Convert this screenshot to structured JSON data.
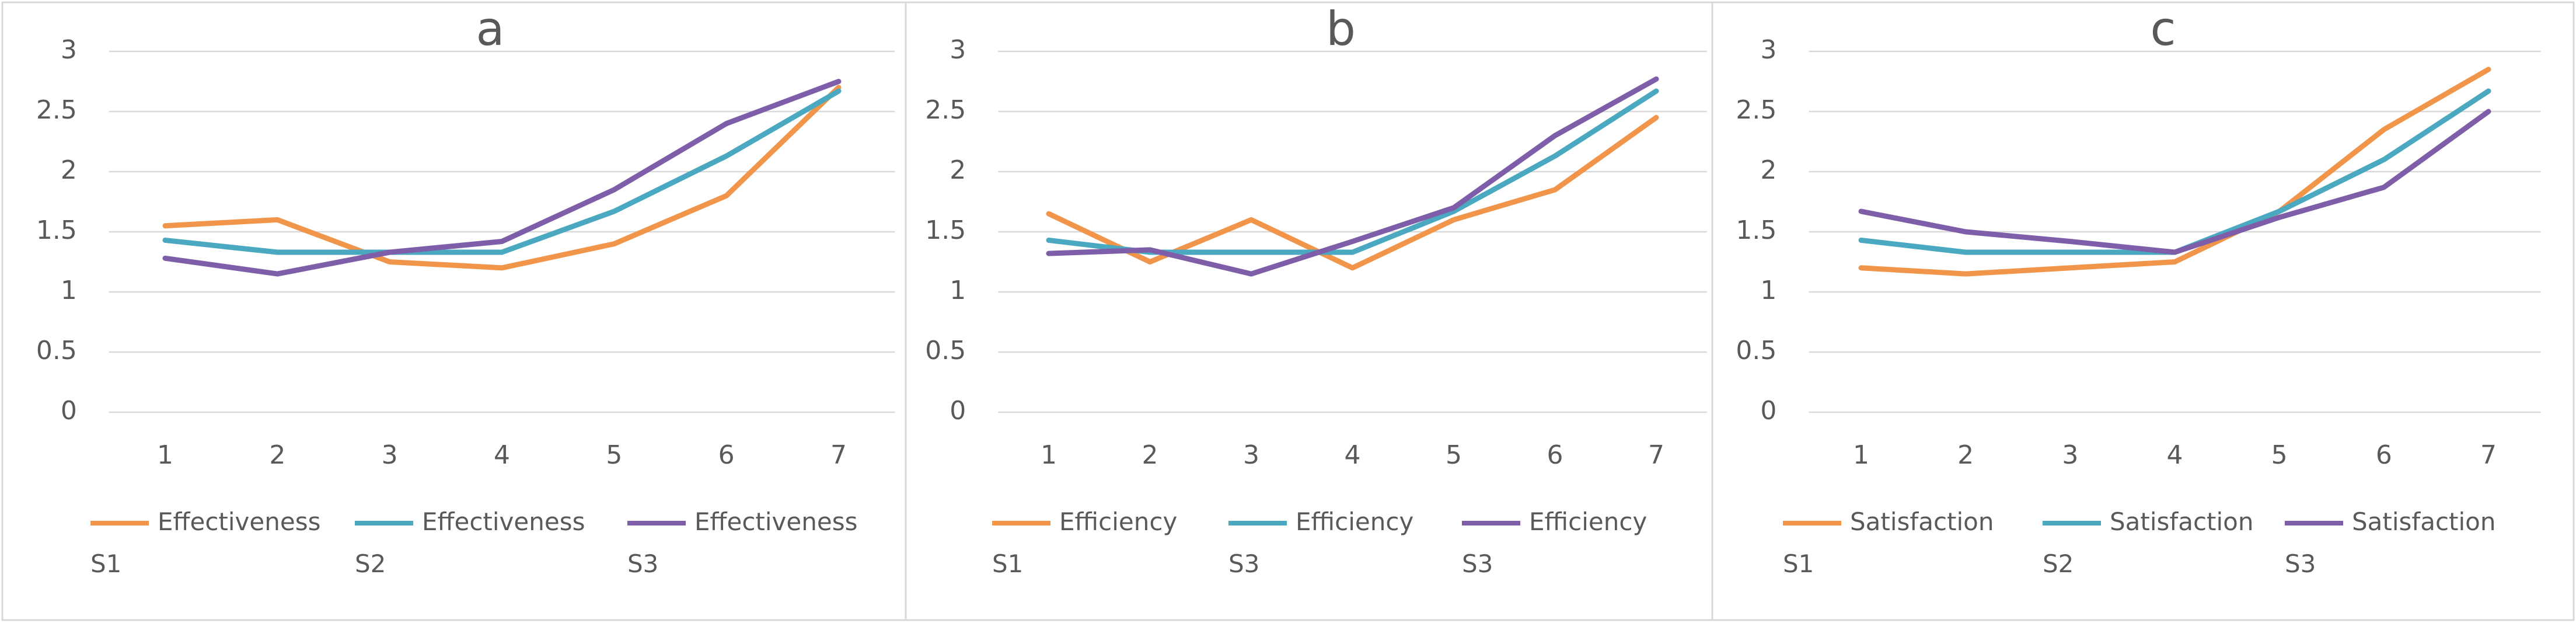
{
  "chart_data": [
    {
      "type": "line",
      "title": "a",
      "categories": [
        "1",
        "2",
        "3",
        "4",
        "5",
        "6",
        "7"
      ],
      "ylim": [
        0,
        3
      ],
      "yticks": [
        0,
        0.5,
        1,
        1.5,
        2,
        2.5,
        3
      ],
      "grid": true,
      "series": [
        {
          "name": "Effectiveness S1",
          "color": "#f0954a",
          "values": [
            1.55,
            1.6,
            1.25,
            1.2,
            1.4,
            1.8,
            2.7
          ]
        },
        {
          "name": "Effectiveness S2",
          "color": "#4aa8c0",
          "values": [
            1.43,
            1.33,
            1.33,
            1.33,
            1.67,
            2.13,
            2.67
          ]
        },
        {
          "name": "Effectiveness S3",
          "color": "#7e5ea8",
          "values": [
            1.28,
            1.15,
            1.33,
            1.42,
            1.85,
            2.4,
            2.75
          ]
        }
      ]
    },
    {
      "type": "line",
      "title": "b",
      "categories": [
        "1",
        "2",
        "3",
        "4",
        "5",
        "6",
        "7"
      ],
      "ylim": [
        0,
        3
      ],
      "yticks": [
        0,
        0.5,
        1,
        1.5,
        2,
        2.5,
        3
      ],
      "grid": true,
      "series": [
        {
          "name": "Efficiency S1",
          "color": "#f0954a",
          "values": [
            1.65,
            1.25,
            1.6,
            1.2,
            1.6,
            1.85,
            2.45
          ]
        },
        {
          "name": "Efficiency S3",
          "color": "#4aa8c0",
          "values": [
            1.43,
            1.33,
            1.33,
            1.33,
            1.67,
            2.13,
            2.67
          ]
        },
        {
          "name": "Efficiency S3",
          "color": "#7e5ea8",
          "values": [
            1.32,
            1.35,
            1.15,
            1.42,
            1.7,
            2.3,
            2.77
          ]
        }
      ]
    },
    {
      "type": "line",
      "title": "c",
      "categories": [
        "1",
        "2",
        "3",
        "4",
        "5",
        "6",
        "7"
      ],
      "ylim": [
        0,
        3
      ],
      "yticks": [
        0,
        0.5,
        1,
        1.5,
        2,
        2.5,
        3
      ],
      "grid": true,
      "series": [
        {
          "name": "Satisfaction S1",
          "color": "#f0954a",
          "values": [
            1.2,
            1.15,
            1.2,
            1.25,
            1.67,
            2.35,
            2.85
          ]
        },
        {
          "name": "Satisfaction S2",
          "color": "#4aa8c0",
          "values": [
            1.43,
            1.33,
            1.33,
            1.33,
            1.67,
            2.1,
            2.67
          ]
        },
        {
          "name": "Satisfaction S3",
          "color": "#7e5ea8",
          "values": [
            1.67,
            1.5,
            1.42,
            1.33,
            1.62,
            1.87,
            2.5
          ]
        }
      ]
    }
  ]
}
